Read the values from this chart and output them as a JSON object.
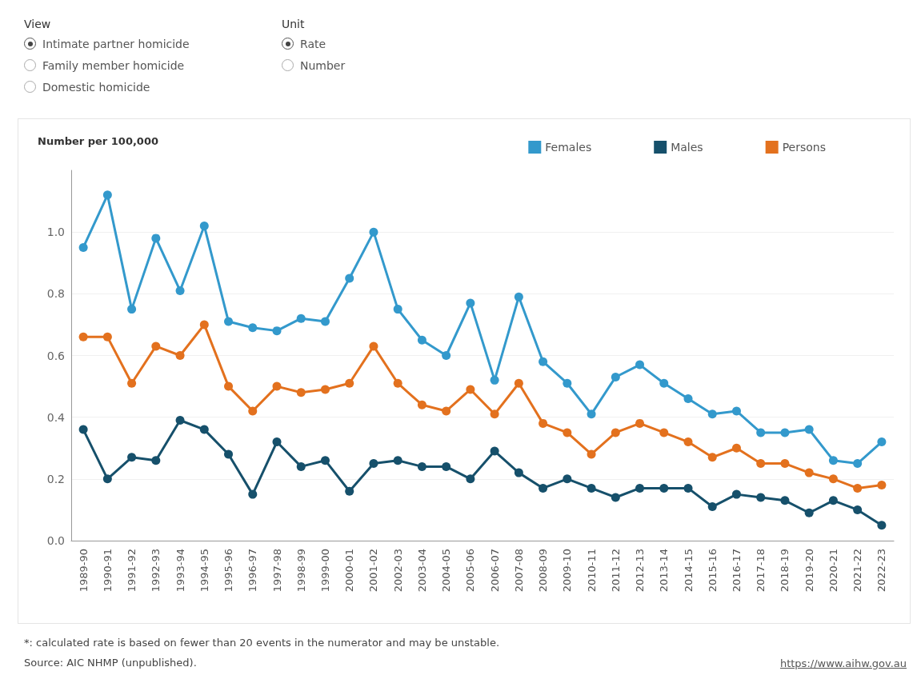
{
  "chart_data": {
    "type": "line",
    "ylabel": "Number per 100,000",
    "categories": [
      "1989-90",
      "1990-91",
      "1991-92",
      "1992-93",
      "1993-94",
      "1994-95",
      "1995-96",
      "1996-97",
      "1997-98",
      "1998-99",
      "1999-00",
      "2000-01",
      "2001-02",
      "2002-03",
      "2003-04",
      "2004-05",
      "2005-06",
      "2006-07",
      "2007-08",
      "2008-09",
      "2009-10",
      "2010-11",
      "2011-12",
      "2012-13",
      "2013-14",
      "2014-15",
      "2015-16",
      "2016-17",
      "2017-18",
      "2018-19",
      "2019-20",
      "2020-21",
      "2021-22",
      "2022-23"
    ],
    "series": [
      {
        "name": "Females",
        "color": "#3399cc",
        "values": [
          0.95,
          1.12,
          0.75,
          0.98,
          0.81,
          1.02,
          0.71,
          0.69,
          0.68,
          0.72,
          0.71,
          0.85,
          1.0,
          0.75,
          0.65,
          0.6,
          0.77,
          0.52,
          0.79,
          0.58,
          0.51,
          0.41,
          0.53,
          0.57,
          0.51,
          0.46,
          0.41,
          0.42,
          0.35,
          0.35,
          0.36,
          0.26,
          0.25,
          0.32
        ]
      },
      {
        "name": "Males",
        "color": "#16506b",
        "values": [
          0.36,
          0.2,
          0.27,
          0.26,
          0.39,
          0.36,
          0.28,
          0.15,
          0.32,
          0.24,
          0.26,
          0.16,
          0.25,
          0.26,
          0.24,
          0.24,
          0.2,
          0.29,
          0.22,
          0.17,
          0.2,
          0.17,
          0.14,
          0.17,
          0.17,
          0.17,
          0.11,
          0.15,
          0.14,
          0.13,
          0.09,
          0.13,
          0.1,
          0.05
        ]
      },
      {
        "name": "Persons",
        "color": "#e3711e",
        "values": [
          0.66,
          0.66,
          0.51,
          0.63,
          0.6,
          0.7,
          0.5,
          0.42,
          0.5,
          0.48,
          0.49,
          0.51,
          0.63,
          0.51,
          0.44,
          0.42,
          0.49,
          0.41,
          0.51,
          0.38,
          0.35,
          0.28,
          0.35,
          0.38,
          0.35,
          0.32,
          0.27,
          0.3,
          0.25,
          0.25,
          0.22,
          0.2,
          0.17,
          0.18
        ]
      }
    ],
    "ylim": [
      0,
      1.2
    ],
    "yticks": [
      {
        "value": 0,
        "label": "0.0"
      },
      {
        "value": 0.2,
        "label": "0.2"
      },
      {
        "value": 0.4,
        "label": "0.4"
      },
      {
        "value": 0.6,
        "label": "0.6"
      },
      {
        "value": 0.8,
        "label": "0.8"
      },
      {
        "value": 1.0,
        "label": "1.0"
      }
    ],
    "grid": "y",
    "legend": "top right",
    "marker": "circle",
    "line_style": "solid",
    "annotations": [
      "View",
      "Intimate partner homicide",
      "Family member homicide",
      "Domestic homicide",
      "Unit",
      "Rate",
      "Number",
      "*: calculated rate is based on fewer than 20 events in the numerator and may be unstable.",
      "Source: AIC NHMP (unpublished).",
      "https://www.aihw.gov.au"
    ]
  }
}
